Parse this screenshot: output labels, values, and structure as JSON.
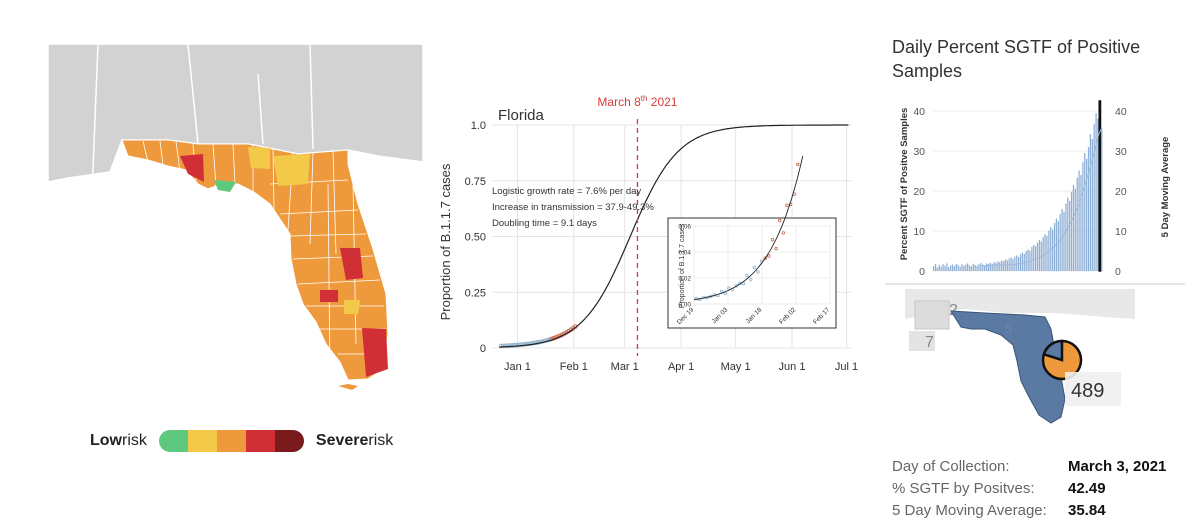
{
  "risk_map": {
    "legend": {
      "low_bold": "Low",
      "low_rest": " risk",
      "severe_bold": "Severe",
      "severe_rest": " risk"
    },
    "colors": [
      "#5ec97e",
      "#f3c94a",
      "#ee9a3c",
      "#d12f36",
      "#7a1a1d"
    ]
  },
  "logistic": {
    "chart_data": {
      "type": "line",
      "title": "Florida",
      "ylabel": "Proportion of B.1.1.7 cases",
      "x_ticks": [
        "Jan 1",
        "Feb 1",
        "Mar 1",
        "Apr 1",
        "May 1",
        "Jun 1",
        "Jul 1"
      ],
      "y_ticks": [
        "0",
        "0.25",
        "0.50",
        "0.75",
        "1.0"
      ],
      "ylim": [
        0,
        1
      ],
      "xlim_days": [
        -14,
        184
      ],
      "logistic_midpoint_day": 62,
      "growth_rate_per_day": 0.076,
      "marker_label": "March 8",
      "marker_sup": "th",
      "marker_year": " 2021",
      "marker_day": 66,
      "annotations": [
        "Logistic growth rate = 7.6% per day",
        "Increase in transmission = 37.9-49.3%",
        "Doubling time = 9.1 days"
      ],
      "inset": {
        "ylabel": "Proportion of B.1.1.7 cases",
        "x_ticks": [
          "Dec 19",
          "Jan 03",
          "Jan 18",
          "Feb 02",
          "Feb 17"
        ],
        "y_ticks": [
          "0.00",
          "0.02",
          "0.04",
          "0.06"
        ],
        "ylim": [
          0,
          0.06
        ]
      }
    }
  },
  "sgtf": {
    "title": "Daily Percent SGTF of Positive Samples",
    "chart_data": {
      "type": "bar",
      "ylabel": "Percent SGTF of Positve Samples",
      "y2label": "5 Day Moving Average",
      "y_ticks": [
        "0",
        "10",
        "20",
        "30",
        "40"
      ],
      "ylim": [
        0,
        44
      ],
      "values": [
        1.2,
        1.8,
        0.9,
        1.5,
        1.1,
        1.7,
        1.3,
        1.9,
        1.0,
        1.4,
        1.6,
        1.2,
        1.8,
        1.5,
        1.1,
        1.7,
        1.3,
        1.6,
        1.9,
        1.4,
        1.2,
        1.8,
        1.5,
        1.3,
        1.7,
        2.0,
        1.6,
        1.4,
        1.9,
        1.8,
        2.1,
        1.7,
        2.3,
        2.0,
        2.4,
        2.2,
        2.6,
        2.5,
        2.9,
        2.7,
        3.1,
        3.4,
        3.0,
        3.6,
        3.9,
        3.5,
        4.2,
        4.6,
        4.3,
        5.0,
        5.4,
        5.1,
        6.0,
        6.5,
        6.2,
        7.1,
        7.8,
        7.4,
        8.5,
        9.2,
        8.8,
        10.1,
        11.0,
        10.4,
        12.0,
        13.1,
        12.5,
        14.2,
        15.5,
        14.8,
        16.9,
        18.4,
        17.5,
        19.8,
        21.5,
        20.6,
        23.3,
        25.1,
        24.0,
        27.2,
        29.5,
        28.1,
        31.0,
        34.2,
        33.0,
        36.8,
        39.5,
        38.1,
        42.49,
        35.84
      ],
      "moving_avg": [
        1.3,
        1.3,
        1.4,
        1.4,
        1.3,
        1.5,
        1.5,
        1.4,
        1.5,
        1.5,
        1.5,
        1.5,
        1.5,
        1.6,
        1.6,
        1.5,
        1.6,
        1.7,
        1.7,
        1.8,
        1.9,
        2.0,
        2.1,
        2.2,
        2.3,
        2.5,
        2.7,
        2.9,
        3.0,
        3.2,
        3.5,
        3.7,
        4.0,
        4.3,
        4.6,
        5.0,
        5.4,
        5.8,
        6.2,
        6.8,
        7.3,
        7.9,
        8.5,
        9.2,
        10.0,
        10.8,
        11.7,
        12.7,
        13.7,
        14.9,
        16.0,
        17.3,
        18.6,
        20.0,
        21.5,
        23.1,
        24.7,
        26.5,
        28.3,
        30.2,
        32.0,
        33.8,
        35.0,
        35.84
      ]
    }
  },
  "mini_map": {
    "labels": [
      "2",
      "7",
      "5",
      "489"
    ]
  },
  "info": {
    "rows": [
      {
        "label": "Day of Collection:",
        "value": "March 3, 2021"
      },
      {
        "label": "% SGTF by Positves:",
        "value": "42.49"
      },
      {
        "label": "5 Day Moving Average:",
        "value": "35.84"
      }
    ]
  }
}
